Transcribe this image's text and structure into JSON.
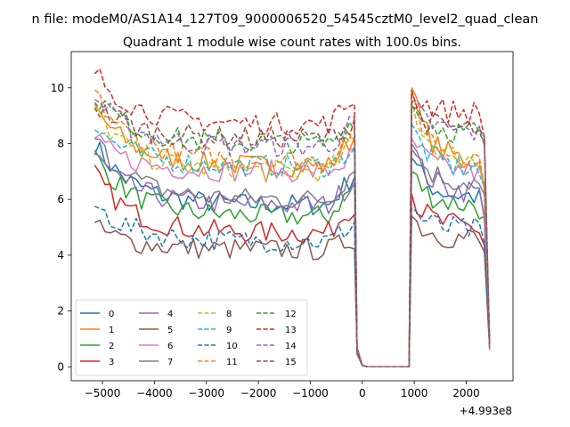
{
  "figure": {
    "suptitle": "n file: modeM0/AS1A14_127T09_9000006520_54545cztM0_level2_quad_clean",
    "offset_label": "+4.993e8"
  },
  "chart_data": {
    "type": "line",
    "title": "Quadrant 1 module wise count rates with 100.0s bins.",
    "xlabel": "",
    "ylabel": "",
    "xlim": [
      -5600,
      2900
    ],
    "ylim": [
      -0.5,
      11.3
    ],
    "x_offset": 499300000,
    "x_ticks": [
      -5000,
      -4000,
      -3000,
      -2000,
      -1000,
      0,
      1000,
      2000
    ],
    "x_tick_labels": [
      "−5000",
      "−4000",
      "−3000",
      "−2000",
      "−1000",
      "0",
      "1000",
      "2000"
    ],
    "y_ticks": [
      0,
      2,
      4,
      6,
      8,
      10
    ],
    "y_tick_labels": [
      "0",
      "2",
      "4",
      "6",
      "8",
      "10"
    ],
    "grid": false,
    "legend_placement": "lower-left",
    "legend_columns": 4,
    "bin_seconds": 100,
    "segments": [
      {
        "start": -5150,
        "end": -150
      },
      {
        "start": 950,
        "end": 2450
      }
    ],
    "gap_x": [
      -100,
      0,
      100,
      200,
      300,
      400,
      500,
      600,
      700,
      800,
      900
    ],
    "series": [
      {
        "name": "0",
        "color": "#1f77b4",
        "dashed": false,
        "level": 5.8,
        "start": 8.0,
        "seg2_level": 6.1,
        "seg2_start": 7.5
      },
      {
        "name": "1",
        "color": "#ff7f0e",
        "dashed": false,
        "level": 7.2,
        "start": 9.3,
        "seg2_level": 7.4,
        "seg2_start": 10.0
      },
      {
        "name": "2",
        "color": "#2ca02c",
        "dashed": false,
        "level": 5.4,
        "start": 7.6,
        "seg2_level": 5.8,
        "seg2_start": 7.0
      },
      {
        "name": "3",
        "color": "#d62728",
        "dashed": false,
        "level": 4.8,
        "start": 6.9,
        "seg2_level": 5.0,
        "seg2_start": 6.2
      },
      {
        "name": "4",
        "color": "#9467bd",
        "dashed": false,
        "level": 5.8,
        "start": 7.6,
        "seg2_level": 6.3,
        "seg2_start": 7.8
      },
      {
        "name": "5",
        "color": "#8c564b",
        "dashed": false,
        "level": 4.2,
        "start": 5.0,
        "seg2_level": 4.6,
        "seg2_start": 5.4
      },
      {
        "name": "6",
        "color": "#e377c2",
        "dashed": false,
        "level": 7.0,
        "start": 8.1,
        "seg2_level": 7.0,
        "seg2_start": 8.2
      },
      {
        "name": "7",
        "color": "#7f7f7f",
        "dashed": false,
        "level": 6.0,
        "start": 8.2,
        "seg2_level": 6.6,
        "seg2_start": 8.0
      },
      {
        "name": "8",
        "color": "#bcbd22",
        "dashed": true,
        "level": 7.0,
        "start": 9.2,
        "seg2_level": 7.4,
        "seg2_start": 9.6
      },
      {
        "name": "9",
        "color": "#17becf",
        "dashed": true,
        "level": 7.2,
        "start": 8.6,
        "seg2_level": 7.1,
        "seg2_start": 8.7
      },
      {
        "name": "10",
        "color": "#1f77b4",
        "dashed": true,
        "level": 4.5,
        "start": 5.8,
        "seg2_level": 4.9,
        "seg2_start": 5.7
      },
      {
        "name": "11",
        "color": "#ff7f0e",
        "dashed": true,
        "level": 7.4,
        "start": 9.8,
        "seg2_level": 7.5,
        "seg2_start": 9.9
      },
      {
        "name": "12",
        "color": "#2ca02c",
        "dashed": true,
        "level": 8.0,
        "start": 9.8,
        "seg2_level": 8.4,
        "seg2_start": 9.4
      },
      {
        "name": "13",
        "color": "#d62728",
        "dashed": true,
        "level": 8.7,
        "start": 10.6,
        "seg2_level": 9.1,
        "seg2_start": 9.9
      },
      {
        "name": "14",
        "color": "#9467bd",
        "dashed": true,
        "level": 7.9,
        "start": 9.7,
        "seg2_level": 8.4,
        "seg2_start": 9.5
      },
      {
        "name": "15",
        "color": "#8c564b",
        "dashed": true,
        "level": 8.2,
        "start": 9.4,
        "seg2_level": 8.5,
        "seg2_start": 9.3
      }
    ]
  }
}
